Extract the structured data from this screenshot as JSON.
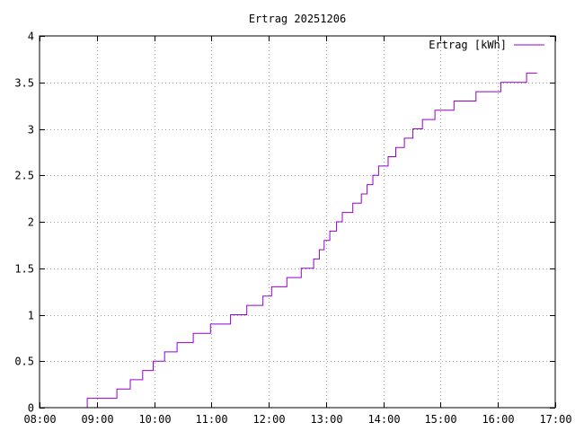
{
  "chart_data": {
    "type": "line",
    "title": "Ertrag 20251206",
    "xlabel": "",
    "ylabel": "",
    "x_unit": "time of day (HH:MM)",
    "xlim": [
      "08:00",
      "17:00"
    ],
    "ylim": [
      0,
      4
    ],
    "x_ticks": [
      "08:00",
      "09:00",
      "10:00",
      "11:00",
      "12:00",
      "13:00",
      "14:00",
      "15:00",
      "16:00",
      "17:00"
    ],
    "y_ticks": [
      "0",
      "0.5",
      "1",
      "1.5",
      "2",
      "2.5",
      "3",
      "3.5",
      "4"
    ],
    "grid": true,
    "legend_position": "top-right",
    "series": [
      {
        "name": "Ertrag [kWh]",
        "color": "#9400d3",
        "step": true,
        "points": [
          [
            "08:49",
            0.0
          ],
          [
            "08:50",
            0.1
          ],
          [
            "09:19",
            0.1
          ],
          [
            "09:21",
            0.2
          ],
          [
            "09:33",
            0.2
          ],
          [
            "09:35",
            0.3
          ],
          [
            "09:46",
            0.3
          ],
          [
            "09:48",
            0.4
          ],
          [
            "09:57",
            0.4
          ],
          [
            "09:59",
            0.5
          ],
          [
            "10:09",
            0.5
          ],
          [
            "10:11",
            0.6
          ],
          [
            "10:22",
            0.6
          ],
          [
            "10:24",
            0.7
          ],
          [
            "10:39",
            0.7
          ],
          [
            "10:41",
            0.8
          ],
          [
            "10:57",
            0.8
          ],
          [
            "10:59",
            0.9
          ],
          [
            "11:18",
            0.9
          ],
          [
            "11:20",
            1.0
          ],
          [
            "11:35",
            1.0
          ],
          [
            "11:37",
            1.1
          ],
          [
            "11:52",
            1.1
          ],
          [
            "11:54",
            1.2
          ],
          [
            "12:01",
            1.2
          ],
          [
            "12:03",
            1.3
          ],
          [
            "12:17",
            1.3
          ],
          [
            "12:19",
            1.4
          ],
          [
            "12:32",
            1.4
          ],
          [
            "12:34",
            1.5
          ],
          [
            "12:45",
            1.5
          ],
          [
            "12:47",
            1.6
          ],
          [
            "12:51",
            1.6
          ],
          [
            "12:53",
            1.7
          ],
          [
            "12:56",
            1.7
          ],
          [
            "12:58",
            1.8
          ],
          [
            "13:02",
            1.8
          ],
          [
            "13:04",
            1.9
          ],
          [
            "13:09",
            1.9
          ],
          [
            "13:11",
            2.0
          ],
          [
            "13:15",
            2.0
          ],
          [
            "13:17",
            2.1
          ],
          [
            "13:26",
            2.1
          ],
          [
            "13:28",
            2.2
          ],
          [
            "13:35",
            2.2
          ],
          [
            "13:37",
            2.3
          ],
          [
            "13:41",
            2.3
          ],
          [
            "13:43",
            2.4
          ],
          [
            "13:47",
            2.4
          ],
          [
            "13:49",
            2.5
          ],
          [
            "13:53",
            2.5
          ],
          [
            "13:55",
            2.6
          ],
          [
            "14:03",
            2.6
          ],
          [
            "14:05",
            2.7
          ],
          [
            "14:11",
            2.7
          ],
          [
            "14:13",
            2.8
          ],
          [
            "14:20",
            2.8
          ],
          [
            "14:22",
            2.9
          ],
          [
            "14:29",
            2.9
          ],
          [
            "14:31",
            3.0
          ],
          [
            "14:39",
            3.0
          ],
          [
            "14:41",
            3.1
          ],
          [
            "14:52",
            3.1
          ],
          [
            "14:54",
            3.2
          ],
          [
            "15:12",
            3.2
          ],
          [
            "15:14",
            3.3
          ],
          [
            "15:35",
            3.3
          ],
          [
            "15:37",
            3.4
          ],
          [
            "16:01",
            3.4
          ],
          [
            "16:03",
            3.5
          ],
          [
            "16:28",
            3.5
          ],
          [
            "16:30",
            3.6
          ],
          [
            "16:41",
            3.6
          ]
        ]
      }
    ]
  }
}
